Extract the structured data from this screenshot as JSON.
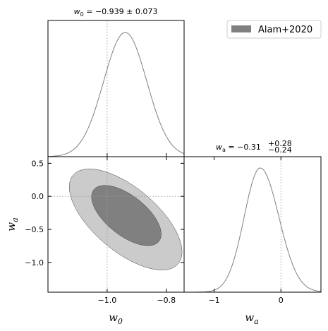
{
  "chart_data": {
    "type": "corner-plot",
    "legend": {
      "label": "Alam+2020",
      "color": "#808080",
      "placement": "top-right"
    },
    "colors": {
      "outer_contour": "#cbcbcb",
      "inner_contour": "#808080",
      "curve": "#808080",
      "edge": "#404040",
      "reference_line": "#9a9a9a"
    },
    "parameters": [
      {
        "name": "w0",
        "mean": -0.939,
        "sigma": 0.073,
        "range": [
          -1.2,
          -0.74
        ],
        "ticks": [
          -1.0,
          -0.8
        ],
        "tick_labels": [
          "−1.0",
          "−0.8"
        ],
        "reference": -1.0
      },
      {
        "name": "wa",
        "mean": -0.31,
        "err_plus": 0.28,
        "err_minus": 0.24,
        "range": [
          -1.45,
          0.6
        ],
        "ticks": [
          -1,
          0
        ],
        "tick_labels": [
          "−1",
          "0"
        ],
        "yticks": [
          0.5,
          0.0,
          -0.5,
          -1.0
        ],
        "ytick_labels": [
          "0.5",
          "0.0",
          "−0.5",
          "−1.0"
        ],
        "reference": 0.0
      }
    ],
    "titles": {
      "w0": {
        "base": "w",
        "sub": "0",
        "text": " = −0.939 ± 0.073"
      },
      "wa": {
        "base": "w",
        "sub": "a",
        "text": " = −0.31",
        "sup": "+0.28",
        "subscript_err": "−0.24"
      }
    },
    "axis_labels": {
      "x0": {
        "base": "w",
        "sub": "0"
      },
      "x1": {
        "base": "w",
        "sub": "a"
      },
      "y": {
        "base": "w",
        "sub": "a"
      }
    },
    "contours": {
      "outer": {
        "center": [
          -0.94,
          -0.35
        ],
        "axis_ends": [
          [
            -1.115,
            0.32
          ],
          [
            -0.76,
            -1.02
          ]
        ],
        "minor_half_width": 0.48
      },
      "inner": {
        "center": [
          -0.945,
          -0.3
        ],
        "axis_ends": [
          [
            -1.045,
            0.1
          ],
          [
            -0.825,
            -0.68
          ]
        ],
        "minor_half_width": 0.3
      }
    }
  }
}
